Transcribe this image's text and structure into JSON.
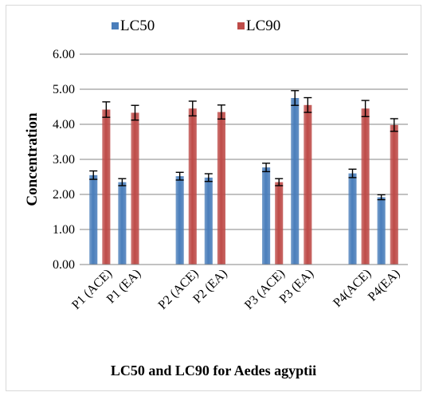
{
  "chart_data": {
    "type": "bar",
    "title": "",
    "caption": "LC50 and LC90  for Aedes agyptii",
    "ylabel": "Concentration",
    "xlabel": "",
    "ylim": [
      0,
      6
    ],
    "yticks": [
      "0.00",
      "1.00",
      "2.00",
      "3.00",
      "4.00",
      "5.00",
      "6.00"
    ],
    "categories": [
      "P1 (ACE)",
      "P1 (EA)",
      "P2  (ACE)",
      "P2 (EA)",
      "P3 (ACE)",
      "P3 (EA)",
      "P4(ACE)",
      "P4(EA)"
    ],
    "groups": [
      [
        0,
        1
      ],
      [
        2,
        3
      ],
      [
        4,
        5
      ],
      [
        6,
        7
      ]
    ],
    "series": [
      {
        "name": "LC50",
        "color": "#4a7ebb",
        "values": [
          2.55,
          2.35,
          2.52,
          2.48,
          2.77,
          4.75,
          2.6,
          1.92
        ],
        "errors": [
          0.12,
          0.1,
          0.11,
          0.11,
          0.12,
          0.21,
          0.12,
          0.07
        ]
      },
      {
        "name": "LC90",
        "color": "#be4b48",
        "values": [
          4.42,
          4.33,
          4.45,
          4.35,
          2.35,
          4.55,
          4.45,
          3.98
        ],
        "errors": [
          0.22,
          0.21,
          0.21,
          0.2,
          0.1,
          0.21,
          0.23,
          0.18
        ]
      }
    ],
    "grid": true,
    "legend": "top"
  }
}
